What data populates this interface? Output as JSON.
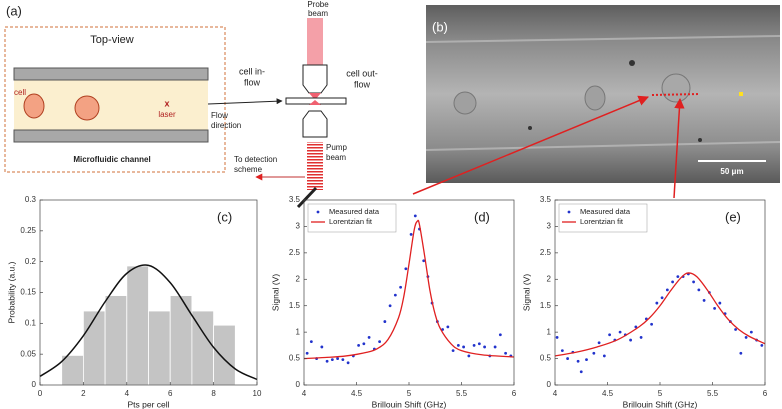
{
  "panel_a": {
    "label": "(a)",
    "title": "Top-view",
    "cell": "cell",
    "laser": "laser",
    "laser_mark": "x",
    "flow_direction": [
      "Flow",
      "direction"
    ],
    "caption": "Microfluidic channel",
    "probe_beam": [
      "Probe",
      "beam"
    ],
    "cell_in_flow": [
      "cell in-",
      "flow"
    ],
    "cell_out_flow": [
      "cell out-",
      "flow"
    ],
    "pump_beam": [
      "Pump",
      "beam"
    ],
    "detection": [
      "To detection",
      "scheme"
    ]
  },
  "panel_b": {
    "label": "(b)",
    "scale_bar": "50 μm"
  },
  "chart_data": [
    {
      "type": "histogram",
      "label": "(c)",
      "xlabel": "Pts per cell",
      "ylabel": "Probability (a.u.)",
      "bins": [
        1,
        2,
        3,
        4,
        5,
        6,
        7,
        8,
        9
      ],
      "counts": [
        0.048,
        0.12,
        0.145,
        0.193,
        0.12,
        0.145,
        0.12,
        0.097
      ],
      "color": "#c4c4c4",
      "fit": {
        "color": "#111111",
        "x": [
          0,
          1,
          2,
          3,
          4,
          5,
          6,
          7,
          8,
          9,
          10
        ],
        "values": [
          0.014,
          0.038,
          0.08,
          0.135,
          0.181,
          0.194,
          0.166,
          0.113,
          0.061,
          0.026,
          0.009
        ]
      },
      "xlim": [
        0,
        10
      ],
      "xticks": [
        0,
        2,
        4,
        6,
        8,
        10
      ],
      "ylim": [
        0,
        0.3
      ],
      "yticks": [
        0,
        0.05,
        0.1,
        0.15,
        0.2,
        0.25,
        0.3
      ]
    },
    {
      "type": "line",
      "label": "(d)",
      "xlabel": "Brillouin Shift (GHz)",
      "ylabel": "Signal (V)",
      "legend": "upper left",
      "xlim": [
        4,
        6
      ],
      "xticks": [
        4,
        4.5,
        5,
        5.5,
        6
      ],
      "ylim": [
        0,
        3.5
      ],
      "yticks": [
        0,
        0.5,
        1,
        1.5,
        2,
        2.5,
        3,
        3.5
      ],
      "series": [
        {
          "name": "Measured data",
          "mark": "dots",
          "color": "#2233cc",
          "x": [
            4.03,
            4.07,
            4.12,
            4.17,
            4.22,
            4.27,
            4.32,
            4.37,
            4.42,
            4.47,
            4.52,
            4.57,
            4.62,
            4.67,
            4.72,
            4.77,
            4.82,
            4.87,
            4.92,
            4.97,
            5.02,
            5.06,
            5.1,
            5.14,
            5.18,
            5.22,
            5.27,
            5.32,
            5.37,
            5.42,
            5.47,
            5.52,
            5.57,
            5.62,
            5.67,
            5.72,
            5.77,
            5.82,
            5.87,
            5.92,
            5.97
          ],
          "values": [
            0.6,
            0.82,
            0.5,
            0.72,
            0.45,
            0.48,
            0.5,
            0.48,
            0.42,
            0.55,
            0.75,
            0.78,
            0.9,
            0.68,
            0.82,
            1.2,
            1.5,
            1.7,
            1.85,
            2.2,
            2.85,
            3.2,
            2.95,
            2.35,
            2.05,
            1.55,
            1.2,
            1.05,
            1.1,
            0.65,
            0.75,
            0.72,
            0.55,
            0.75,
            0.78,
            0.72,
            0.55,
            0.72,
            0.95,
            0.6,
            0.55
          ]
        },
        {
          "name": "Lorentzian fit",
          "mark": "line",
          "color": "#e02020",
          "x": [
            4,
            4.2,
            4.4,
            4.6,
            4.7,
            4.8,
            4.9,
            4.95,
            5,
            5.05,
            5.08,
            5.1,
            5.15,
            5.2,
            5.25,
            5.3,
            5.4,
            5.5,
            5.7,
            6
          ],
          "values": [
            0.5,
            0.52,
            0.55,
            0.62,
            0.69,
            0.86,
            1.27,
            1.67,
            2.29,
            2.94,
            3.1,
            3.03,
            2.43,
            1.78,
            1.33,
            1.06,
            0.78,
            0.65,
            0.57,
            0.53
          ]
        }
      ]
    },
    {
      "type": "line",
      "label": "(e)",
      "xlabel": "Brillouin Shift (GHz)",
      "ylabel": "Signal (V)",
      "legend": "upper left",
      "xlim": [
        4,
        6
      ],
      "xticks": [
        4,
        4.5,
        5,
        5.5,
        6
      ],
      "ylim": [
        0,
        3.5
      ],
      "yticks": [
        0,
        0.5,
        1,
        1.5,
        2,
        2.5,
        3,
        3.5
      ],
      "series": [
        {
          "name": "Measured data",
          "mark": "dots",
          "color": "#2233cc",
          "x": [
            4.02,
            4.07,
            4.12,
            4.17,
            4.22,
            4.25,
            4.3,
            4.37,
            4.42,
            4.47,
            4.52,
            4.57,
            4.62,
            4.67,
            4.72,
            4.77,
            4.82,
            4.87,
            4.92,
            4.97,
            5.02,
            5.07,
            5.12,
            5.17,
            5.22,
            5.27,
            5.32,
            5.37,
            5.42,
            5.47,
            5.52,
            5.57,
            5.62,
            5.67,
            5.72,
            5.77,
            5.82,
            5.87,
            5.92,
            5.97
          ],
          "values": [
            0.9,
            0.65,
            0.5,
            0.62,
            0.45,
            0.25,
            0.48,
            0.6,
            0.8,
            0.55,
            0.95,
            0.85,
            1,
            0.95,
            0.85,
            1.1,
            0.9,
            1.25,
            1.15,
            1.55,
            1.65,
            1.8,
            1.95,
            2.05,
            2.05,
            2.1,
            1.95,
            1.8,
            1.6,
            1.75,
            1.45,
            1.55,
            1.35,
            1.2,
            1.05,
            0.6,
            0.9,
            1,
            0.85,
            0.75
          ]
        },
        {
          "name": "Lorentzian fit",
          "mark": "line",
          "color": "#e02020",
          "x": [
            4,
            4.2,
            4.4,
            4.6,
            4.8,
            4.9,
            5,
            5.1,
            5.2,
            5.27,
            5.35,
            5.45,
            5.55,
            5.65,
            5.75,
            5.85,
            6
          ],
          "values": [
            0.55,
            0.62,
            0.72,
            0.86,
            1.1,
            1.27,
            1.5,
            1.78,
            2.03,
            2.12,
            2.05,
            1.8,
            1.5,
            1.24,
            1.05,
            0.92,
            0.78
          ]
        }
      ]
    }
  ]
}
